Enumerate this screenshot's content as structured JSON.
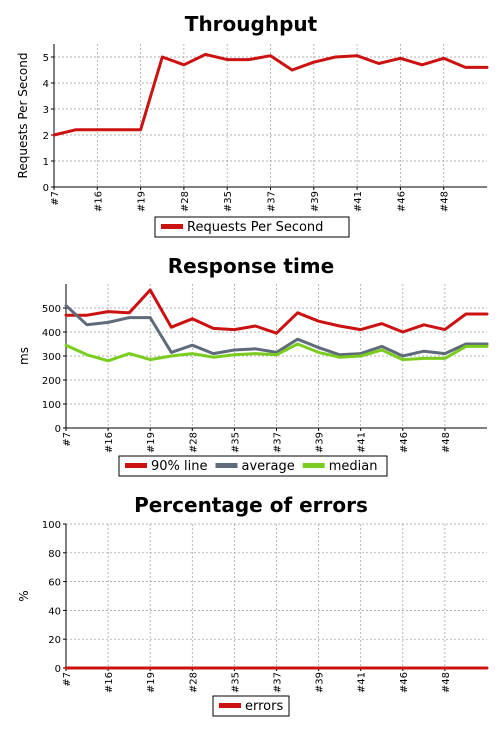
{
  "colors": {
    "red": "#cc1111",
    "gray": "#5f6a7a",
    "green": "#7acd1e"
  },
  "chart_data": [
    {
      "type": "line",
      "title": "Throughput",
      "xlabel": "",
      "ylabel": "Requests Per Second",
      "ylim": [
        0,
        5.5
      ],
      "yticks": [
        0,
        1,
        2,
        3,
        4,
        5
      ],
      "grid": true,
      "legend": "bottom",
      "categories": [
        "#7",
        "#16",
        "#19",
        "#28",
        "#35",
        "#37",
        "#39",
        "#41",
        "#46",
        "#48"
      ],
      "x": [
        0,
        1,
        2,
        3,
        4,
        5,
        6,
        7,
        8,
        9,
        10,
        11,
        12,
        13,
        14,
        15,
        16,
        17,
        18,
        19,
        20
      ],
      "series": [
        {
          "name": "Requests Per Second",
          "color": "#cc1111",
          "values": [
            2.0,
            2.2,
            2.2,
            2.2,
            2.2,
            5.0,
            4.7,
            5.1,
            4.9,
            4.9,
            5.05,
            4.5,
            4.8,
            5.0,
            5.05,
            4.75,
            4.95,
            4.7,
            4.95,
            4.6,
            4.6
          ]
        }
      ]
    },
    {
      "type": "line",
      "title": "Response time",
      "xlabel": "",
      "ylabel": "ms",
      "ylim": [
        0,
        600
      ],
      "yticks": [
        0,
        100,
        200,
        300,
        400,
        500
      ],
      "grid": true,
      "legend": "bottom",
      "categories": [
        "#7",
        "#16",
        "#19",
        "#28",
        "#35",
        "#37",
        "#39",
        "#41",
        "#46",
        "#48"
      ],
      "x": [
        0,
        1,
        2,
        3,
        4,
        5,
        6,
        7,
        8,
        9,
        10,
        11,
        12,
        13,
        14,
        15,
        16,
        17,
        18,
        19,
        20
      ],
      "series": [
        {
          "name": "90% line",
          "color": "#cc1111",
          "values": [
            470,
            470,
            485,
            480,
            575,
            420,
            455,
            415,
            410,
            425,
            395,
            480,
            445,
            425,
            410,
            435,
            400,
            430,
            410,
            475,
            475
          ]
        },
        {
          "name": "average",
          "color": "#5f6a7a",
          "values": [
            510,
            430,
            440,
            460,
            460,
            315,
            345,
            310,
            325,
            330,
            315,
            370,
            335,
            305,
            310,
            340,
            300,
            320,
            310,
            350,
            350
          ]
        },
        {
          "name": "median",
          "color": "#7acd1e",
          "values": [
            345,
            305,
            280,
            310,
            285,
            300,
            310,
            295,
            305,
            310,
            305,
            350,
            315,
            295,
            300,
            325,
            285,
            290,
            290,
            340,
            340
          ]
        }
      ]
    },
    {
      "type": "line",
      "title": "Percentage of errors",
      "xlabel": "",
      "ylabel": "%",
      "ylim": [
        0,
        100
      ],
      "yticks": [
        0,
        20,
        40,
        60,
        80,
        100
      ],
      "grid": true,
      "legend": "bottom",
      "categories": [
        "#7",
        "#16",
        "#19",
        "#28",
        "#35",
        "#37",
        "#39",
        "#41",
        "#46",
        "#48"
      ],
      "x": [
        0,
        1,
        2,
        3,
        4,
        5,
        6,
        7,
        8,
        9,
        10,
        11,
        12,
        13,
        14,
        15,
        16,
        17,
        18,
        19,
        20
      ],
      "series": [
        {
          "name": "errors",
          "color": "#cc1111",
          "values": [
            0,
            0,
            0,
            0,
            0,
            0,
            0,
            0,
            0,
            0,
            0,
            0,
            0,
            0,
            0,
            0,
            0,
            0,
            0,
            0,
            0
          ]
        }
      ]
    }
  ]
}
